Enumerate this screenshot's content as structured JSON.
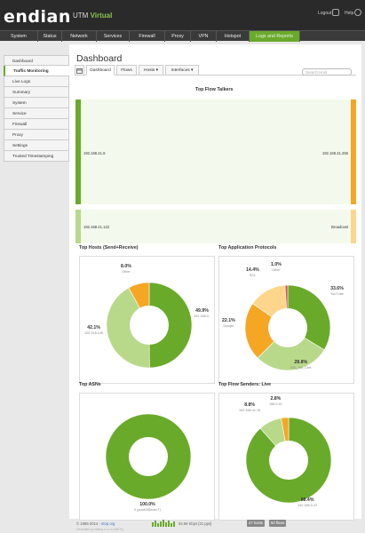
{
  "brand": {
    "logo": "endian",
    "product": "UTM",
    "edition": "Virtual"
  },
  "topbar": {
    "logout": "Logout",
    "help": "Help"
  },
  "nav": {
    "items": [
      "System",
      "Status",
      "Network",
      "Services",
      "Firewall",
      "Proxy",
      "VPN",
      "Hotspot",
      "Logs and Reports"
    ],
    "active": "Logs and Reports"
  },
  "sidebar": {
    "items": [
      "Dashboard",
      "Traffic Monitoring",
      "Live Logs",
      "Summary",
      "System",
      "Service",
      "Firewall",
      "Proxy",
      "Settings",
      "Trusted Timestamping"
    ],
    "active": "Traffic Monitoring"
  },
  "page": {
    "title": "Dashboard"
  },
  "tabs": {
    "items": [
      "Dashboard",
      "Flows",
      "Hosts ▾",
      "Interfaces ▾"
    ],
    "active": "Dashboard"
  },
  "search": {
    "placeholder": "Search Host"
  },
  "talkers": {
    "title": "Top Flow Talkers",
    "rows": [
      {
        "left": "192.168.41.8",
        "right": "192.168.41.255"
      },
      {
        "left": "192.168.41.122",
        "right": "Broadcast"
      }
    ]
  },
  "colors": {
    "green": "#6aaa2a",
    "light_green": "#b8d98a",
    "orange": "#f5a623",
    "light_orange": "#fdd68b",
    "red": "#d9534f",
    "sankey_fill": "#f3f9ec"
  },
  "chart_data": [
    {
      "type": "pie",
      "title": "Top Hosts (Send+Receive)",
      "slices": [
        {
          "value": 49.9,
          "label": "49.9%",
          "name": "192.168.0..",
          "color": "#6aaa2a"
        },
        {
          "value": 42.1,
          "label": "42.1%",
          "name": "125.318.146",
          "color": "#b8d98a"
        },
        {
          "value": 8.0,
          "label": "8.0%",
          "name": "Other",
          "color": "#f5a623"
        }
      ]
    },
    {
      "type": "pie",
      "title": "Top Application Protocols",
      "slices": [
        {
          "value": 33.6,
          "label": "33.6%",
          "name": "YouTube",
          "color": "#6aaa2a"
        },
        {
          "value": 28.8,
          "label": "28.8%",
          "name": "SSL_No_Cert",
          "color": "#b8d98a"
        },
        {
          "value": 22.1,
          "label": "22.1%",
          "name": "Google",
          "color": "#f5a623"
        },
        {
          "value": 14.4,
          "label": "14.4%",
          "name": "SSL",
          "color": "#fdd68b"
        },
        {
          "value": 1.0,
          "label": "1.0%",
          "name": "Other",
          "color": "#d9534f"
        }
      ]
    },
    {
      "type": "pie",
      "title": "Top ASNs",
      "slices": [
        {
          "value": 100.0,
          "label": "100.0%",
          "name": "0 (podiOtSecenT)",
          "color": "#6aaa2a"
        }
      ]
    },
    {
      "type": "pie",
      "title": "Top Flow Senders: Live",
      "slices": [
        {
          "value": 88.4,
          "label": "88.4%",
          "name": "192.186.0.22",
          "color": "#6aaa2a"
        },
        {
          "value": 8.8,
          "label": "8.8%",
          "name": "192.168.41.76",
          "color": "#b8d98a"
        },
        {
          "value": 2.8,
          "label": "2.8%",
          "name": "166.0.41",
          "color": "#f5a623"
        }
      ]
    }
  ],
  "footer": {
    "copyright": "© 1996-2014 -",
    "ntop": "ntop.org",
    "rate": "92.69 Kbps [31 pps]",
    "hosts": "47 hosts",
    "flows": "50 flows",
    "gen": "Generated by ntopng v.1.1.4 (x86/71)"
  }
}
